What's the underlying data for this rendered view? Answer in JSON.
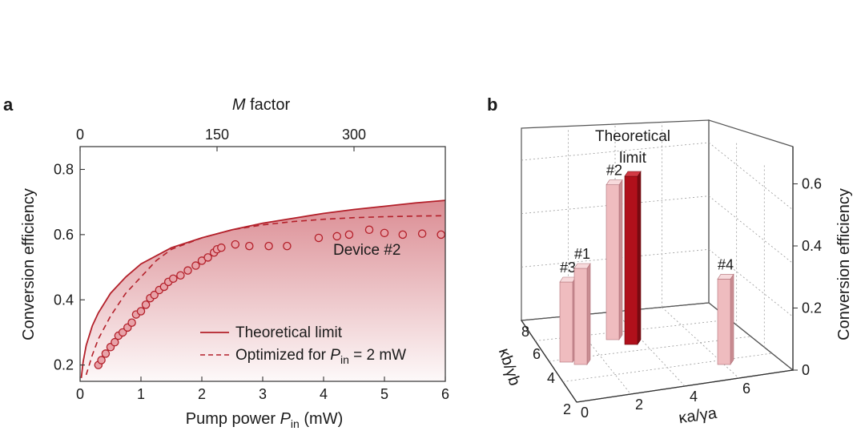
{
  "panel_a": {
    "letter": "a",
    "top_axis_title_italic": "M",
    "top_axis_title_rest": " factor",
    "bottom_axis_title": "Pump power ",
    "bottom_axis_var": "P",
    "bottom_axis_sub": "in",
    "bottom_axis_unit": " (mW)",
    "y_axis_title": "Conversion efficiency",
    "annotation": "Device #2",
    "legend": {
      "theoretical": "Theoretical limit",
      "optimized_prefix": "Optimized for ",
      "optimized_var": "P",
      "optimized_sub": "in",
      "optimized_suffix": " = 2 mW"
    }
  },
  "panel_b": {
    "letter": "b",
    "theory_label_line1": "Theoretical",
    "theory_label_line2": "limit",
    "z_axis_title": "Conversion efficiency",
    "x_axis_title": "κa/γa",
    "y_axis_title": "κb/γb"
  },
  "colors": {
    "dark_red": "#b3202a",
    "fill_red": "#d9868d",
    "marker_fill": "#e8a2a8",
    "bar_pink": "#efbcbf",
    "bar_dark_red": "#b0101b"
  },
  "chart_data": [
    {
      "type": "line",
      "x_range": [
        0,
        6
      ],
      "y_range": [
        0.15,
        0.87
      ],
      "xticks": [
        0,
        1,
        2,
        3,
        4,
        5,
        6
      ],
      "yticks": [
        0.2,
        0.4,
        0.6,
        0.8
      ],
      "top_xticks": [
        0,
        150,
        300
      ],
      "top_x_range": [
        0,
        400
      ],
      "series": [
        {
          "name": "Theoretical limit",
          "style": "solid",
          "x": [
            0.02,
            0.05,
            0.1,
            0.2,
            0.3,
            0.5,
            0.75,
            1.0,
            1.5,
            2.0,
            2.5,
            3.0,
            3.5,
            4.0,
            4.5,
            5.0,
            5.5,
            6.0
          ],
          "y": [
            0.16,
            0.21,
            0.26,
            0.32,
            0.36,
            0.42,
            0.47,
            0.51,
            0.56,
            0.59,
            0.615,
            0.635,
            0.65,
            0.665,
            0.677,
            0.687,
            0.697,
            0.705
          ]
        },
        {
          "name": "Optimized for Pin = 2 mW",
          "style": "dashed",
          "x": [
            0.1,
            0.2,
            0.3,
            0.5,
            0.75,
            1.0,
            1.25,
            1.5,
            2.0,
            2.5,
            3.0,
            3.5,
            4.0,
            4.5,
            5.0,
            5.5,
            6.0
          ],
          "y": [
            0.17,
            0.23,
            0.28,
            0.35,
            0.42,
            0.47,
            0.52,
            0.555,
            0.59,
            0.615,
            0.63,
            0.64,
            0.647,
            0.652,
            0.655,
            0.657,
            0.658
          ]
        },
        {
          "name": "Device #2",
          "style": "markers",
          "x": [
            0.3,
            0.35,
            0.42,
            0.5,
            0.57,
            0.63,
            0.7,
            0.78,
            0.85,
            0.92,
            1.0,
            1.08,
            1.15,
            1.22,
            1.3,
            1.38,
            1.45,
            1.53,
            1.65,
            1.77,
            1.9,
            2.0,
            2.1,
            2.2,
            2.25,
            2.32,
            2.55,
            2.78,
            3.1,
            3.4,
            3.92,
            4.22,
            4.42,
            4.75,
            5.0,
            5.3,
            5.62,
            5.93
          ],
          "y": [
            0.2,
            0.215,
            0.235,
            0.255,
            0.27,
            0.29,
            0.3,
            0.315,
            0.33,
            0.355,
            0.365,
            0.385,
            0.405,
            0.415,
            0.43,
            0.44,
            0.455,
            0.465,
            0.475,
            0.49,
            0.505,
            0.52,
            0.53,
            0.545,
            0.555,
            0.56,
            0.57,
            0.565,
            0.565,
            0.565,
            0.59,
            0.595,
            0.6,
            0.615,
            0.605,
            0.6,
            0.603,
            0.6
          ]
        }
      ]
    },
    {
      "type": "bar",
      "subtype": "3d",
      "x_axis_ticks": [
        0,
        2,
        4,
        6
      ],
      "y_axis_ticks": [
        2,
        4,
        6,
        8
      ],
      "z_axis_ticks": [
        0,
        0.2,
        0.4,
        0.6
      ],
      "z_range": [
        0,
        0.7
      ],
      "bars": [
        {
          "label": "#3",
          "value": 0.3
        },
        {
          "label": "#1",
          "value": 0.36
        },
        {
          "label": "#2",
          "value": 0.58
        },
        {
          "label": "",
          "value": 0.63,
          "highlight": true
        },
        {
          "label": "#4",
          "value": 0.32
        }
      ]
    }
  ]
}
